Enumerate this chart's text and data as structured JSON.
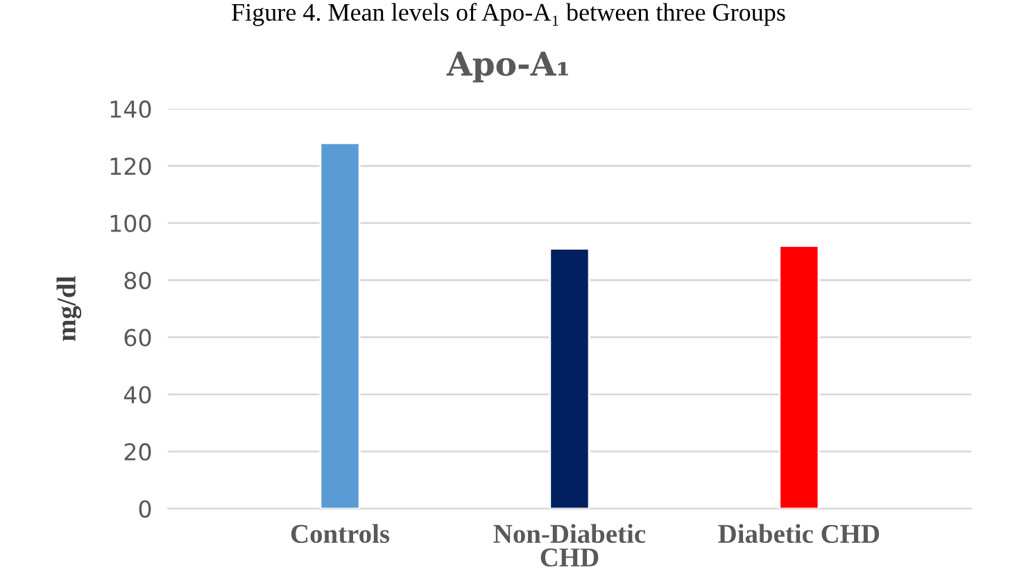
{
  "chart_data": {
    "type": "bar",
    "title": "Apo-A₁",
    "ylabel": "mg/dl",
    "annotations": [
      "Figure 4. Mean levels of Apo-A₁ between three Groups"
    ],
    "categories": [
      "Controls",
      "Non-Diabetic\nCHD",
      "Diabetic CHD"
    ],
    "values": [
      128,
      91,
      92
    ],
    "colors": [
      "#5b9bd5",
      "#002060",
      "#ff0000"
    ],
    "ylim": [
      0,
      140
    ],
    "yticks": [
      0,
      20,
      40,
      60,
      80,
      100,
      120,
      140
    ],
    "grid": "y"
  }
}
